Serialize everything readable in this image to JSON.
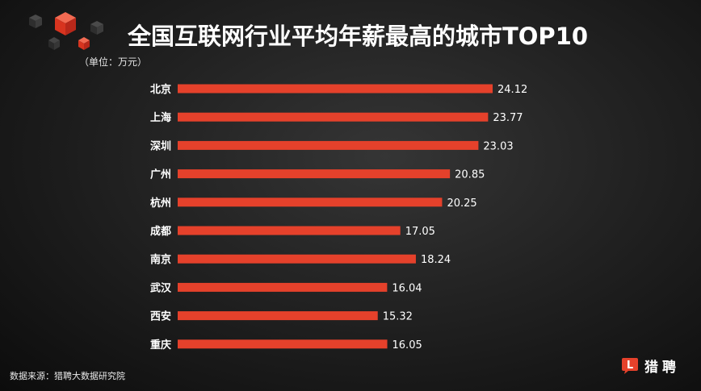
{
  "chart_data": {
    "type": "bar",
    "orientation": "horizontal",
    "title": "全国互联网行业平均年薪最高的城市TOP10",
    "subtitle": "（单位：万元）",
    "categories": [
      "北京",
      "上海",
      "深圳",
      "广州",
      "杭州",
      "成都",
      "南京",
      "武汉",
      "西安",
      "重庆"
    ],
    "values": [
      24.12,
      23.77,
      23.03,
      20.85,
      20.25,
      17.05,
      18.24,
      16.04,
      15.32,
      16.05
    ],
    "grid": false,
    "legend": "none",
    "bar_color": "#e5412b"
  },
  "source": "数据来源：猎聘大数据研究院",
  "brand": {
    "name": "猎聘",
    "icon": "liepin-logo-icon",
    "icon_letter": "L",
    "color": "#e5412b"
  },
  "decoration": {
    "icon": "cubes-icon",
    "accent": "#e5412b",
    "shade": "#3a3a3a"
  }
}
